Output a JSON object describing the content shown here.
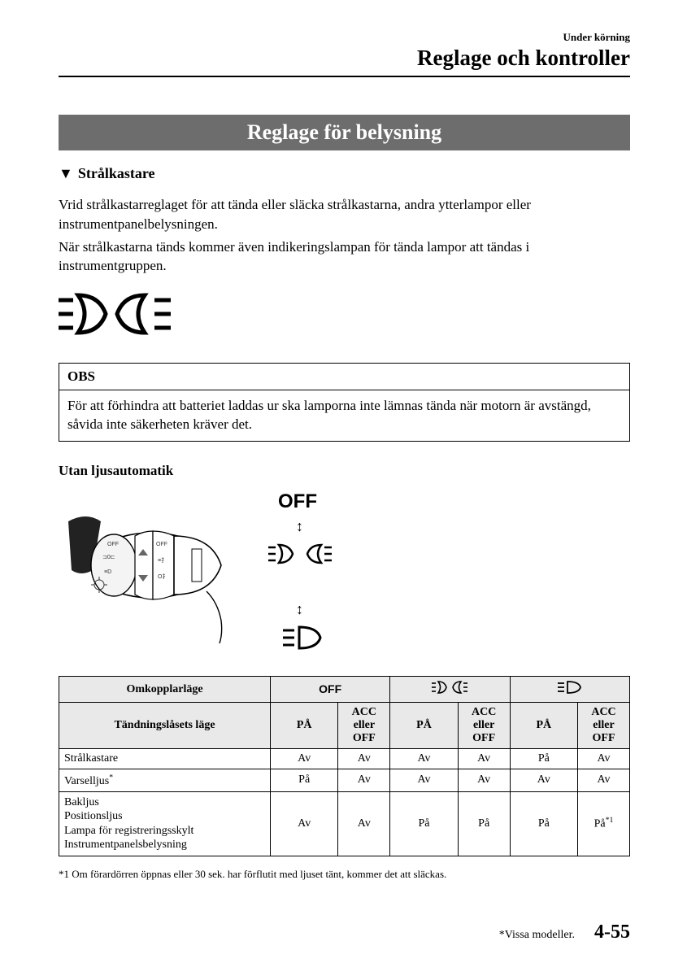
{
  "header": {
    "small": "Under körning",
    "main": "Reglage och kontroller"
  },
  "banner": "Reglage för belysning",
  "subhead": "Strålkastare",
  "paragraph1": "Vrid strålkastarreglaget för att tända eller släcka strålkastarna, andra ytterlampor eller instrumentpanelbelysningen.",
  "paragraph2": "När strålkastarna tänds kommer även indikeringslampan för tända lampor att tändas i instrumentgruppen.",
  "obs": {
    "title": "OBS",
    "body": "För att förhindra att batteriet laddas ur ska lamporna inte lämnas tända när motorn är avstängd, såvida inte säkerheten kräver det."
  },
  "subhead2": "Utan ljusautomatik",
  "diagram": {
    "off_label": "OFF"
  },
  "table": {
    "row1_label": "Omkopplarläge",
    "row2_label": "Tändningslåsets läge",
    "col_on": "PÅ",
    "col_acc": "ACC eller OFF",
    "head_off": "OFF",
    "rows": [
      {
        "label": "Strålkastare",
        "cells": [
          "Av",
          "Av",
          "Av",
          "Av",
          "På",
          "Av"
        ]
      },
      {
        "label": "Varselljus*",
        "cells": [
          "På",
          "Av",
          "Av",
          "Av",
          "Av",
          "Av"
        ]
      },
      {
        "label": "Bakljus\nPositionsljus\nLampa för registreringsskylt\nInstrumentpanelsbelysning",
        "cells": [
          "Av",
          "Av",
          "På",
          "På",
          "På",
          "På*1"
        ]
      }
    ]
  },
  "footnote": "*1   Om förardörren öppnas eller 30 sek. har förflutit med ljuset tänt, kommer det att släckas.",
  "footer": {
    "models": "*Vissa modeller.",
    "page": "4-55"
  }
}
